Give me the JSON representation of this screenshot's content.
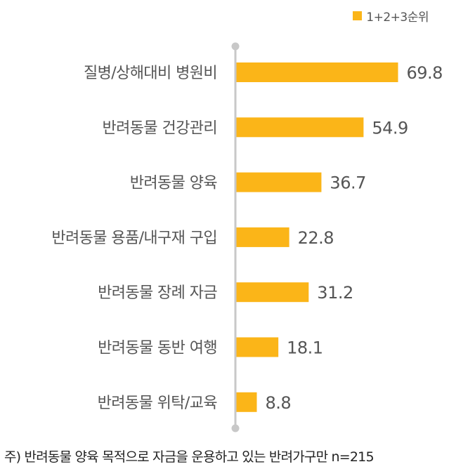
{
  "chart_data": {
    "type": "bar",
    "orientation": "horizontal",
    "categories": [
      "질병/상해대비 병원비",
      "반려동물 건강관리",
      "반려동물 양육",
      "반려동물 용품/내구재 구입",
      "반려동물 장례 자금",
      "반려동물 동반 여행",
      "반려동물 위탁/교육"
    ],
    "series": [
      {
        "name": "1+2+3순위",
        "values": [
          69.8,
          54.9,
          36.7,
          22.8,
          31.2,
          18.1,
          8.8
        ]
      }
    ],
    "xlim": [
      0,
      100
    ],
    "grid": false,
    "legend": "top-right",
    "data_labels": true
  },
  "legend": {
    "label": "1+2+3순위"
  },
  "footnote": "주) 반려동물 양육 목적으로 자금을 운용하고 있는 반려가구만 n=215",
  "colors": {
    "bar": "#FBB518",
    "axis": "#C8C8C8",
    "category_text": "#555555",
    "value_text": "#555555"
  }
}
